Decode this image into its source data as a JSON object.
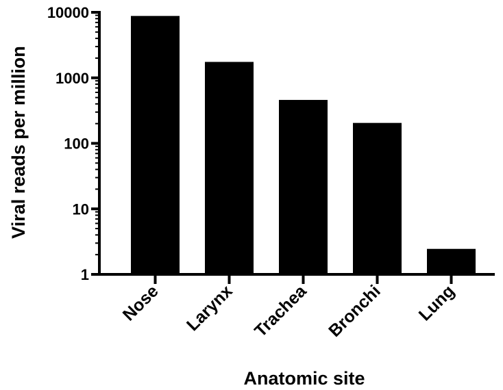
{
  "chart_data": {
    "type": "bar",
    "title": "",
    "xlabel": "Anatomic site",
    "ylabel": "Viral reads per million",
    "y_scale": "log10",
    "ylim": [
      1,
      10000
    ],
    "y_ticks": [
      1,
      10,
      100,
      1000,
      10000
    ],
    "y_tick_labels": [
      "1",
      "10",
      "100",
      "1000",
      "10000"
    ],
    "categories": [
      "Nose",
      "Larynx",
      "Trachea",
      "Bronchi",
      "Lung"
    ],
    "values": [
      8800,
      1750,
      460,
      205,
      2.45
    ],
    "bar_color": "#000000",
    "grid": false,
    "legend": "none"
  }
}
